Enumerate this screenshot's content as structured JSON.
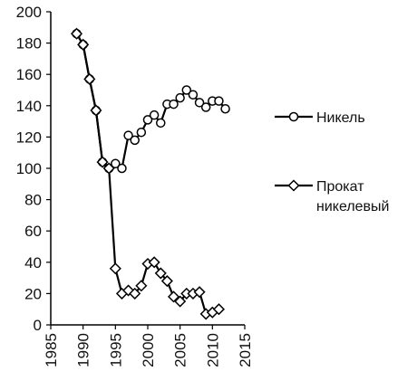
{
  "chart_data": {
    "type": "line",
    "title": "",
    "xlabel": "",
    "ylabel": "",
    "xlim": [
      1985,
      2015
    ],
    "ylim": [
      0,
      200
    ],
    "x_ticks": [
      "1985",
      "1990",
      "1995",
      "2000",
      "2005",
      "2010",
      "2015"
    ],
    "y_ticks": [
      "0",
      "20",
      "40",
      "60",
      "80",
      "100",
      "120",
      "140",
      "160",
      "180",
      "200"
    ],
    "grid": false,
    "legend_position": "right",
    "series": [
      {
        "name": "Никель",
        "marker": "circle",
        "color": "#000000",
        "x": [
          1989,
          1990,
          1991,
          1992,
          1993,
          1994,
          1995,
          1996,
          1997,
          1998,
          1999,
          2000,
          2001,
          2002,
          2003,
          2004,
          2005,
          2006,
          2007,
          2008,
          2009,
          2010,
          2011,
          2012
        ],
        "y": [
          186,
          179,
          157,
          137,
          104,
          100,
          103,
          100,
          121,
          118,
          123,
          131,
          134,
          129,
          141,
          141,
          145,
          150,
          147,
          142,
          139,
          143,
          143,
          138
        ]
      },
      {
        "name": "Прокат никелевый",
        "marker": "diamond",
        "color": "#000000",
        "x": [
          1989,
          1990,
          1991,
          1992,
          1993,
          1994,
          1995,
          1996,
          1997,
          1998,
          1999,
          2000,
          2001,
          2002,
          2003,
          2004,
          2005,
          2006,
          2007,
          2008,
          2009,
          2010,
          2011
        ],
        "y": [
          186,
          179,
          157,
          137,
          104,
          100,
          36,
          20,
          22,
          20,
          25,
          39,
          40,
          33,
          28,
          18,
          15,
          20,
          20,
          21,
          7,
          8,
          10
        ]
      }
    ]
  },
  "legend": {
    "items": [
      {
        "lines": [
          "Никель"
        ]
      },
      {
        "lines": [
          "Прокат",
          "никелевый"
        ]
      }
    ]
  }
}
